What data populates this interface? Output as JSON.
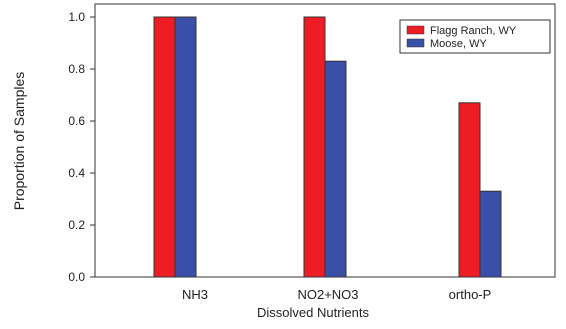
{
  "chart_data": {
    "type": "bar",
    "title": "",
    "xlabel": "Dissolved Nutrients",
    "ylabel": "Proportion of Samples",
    "categories": [
      "NH3",
      "NO2+NO3",
      "ortho-P"
    ],
    "series": [
      {
        "name": "Flagg Ranch, WY",
        "color": "#ee1c25",
        "values": [
          1.0,
          1.0,
          0.67
        ]
      },
      {
        "name": "Moose, WY",
        "color": "#3a4fa8",
        "values": [
          1.0,
          0.83,
          0.33
        ]
      }
    ],
    "ylim": [
      0,
      1.05
    ],
    "yticks": [
      "0.0",
      "0.2",
      "0.4",
      "0.6",
      "0.8",
      "1.0"
    ],
    "grid": false,
    "legend_position": "top-right"
  }
}
